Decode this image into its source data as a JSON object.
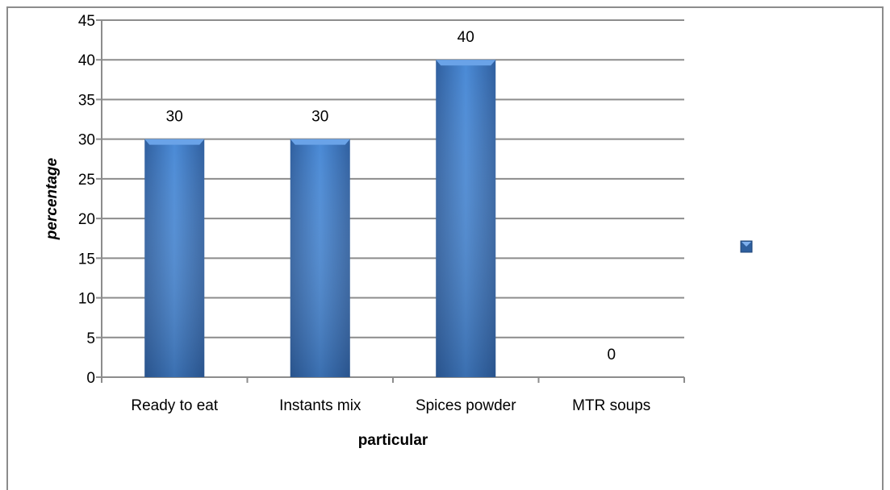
{
  "chart_data": {
    "type": "bar",
    "categories": [
      "Ready to eat",
      "Instants mix",
      "Spices powder",
      "MTR soups"
    ],
    "values": [
      30,
      30,
      40,
      0
    ],
    "xlabel": "particular",
    "ylabel": "percentage",
    "ylim": [
      0,
      45
    ],
    "yticks": [
      0,
      5,
      10,
      15,
      20,
      25,
      30,
      35,
      40,
      45
    ],
    "grid": true,
    "legend": "right",
    "data_labels": true,
    "colors": {
      "bar": "#3c78c8",
      "grid": "#8c8c8c",
      "legend_marker": "#2e5f9e"
    }
  }
}
